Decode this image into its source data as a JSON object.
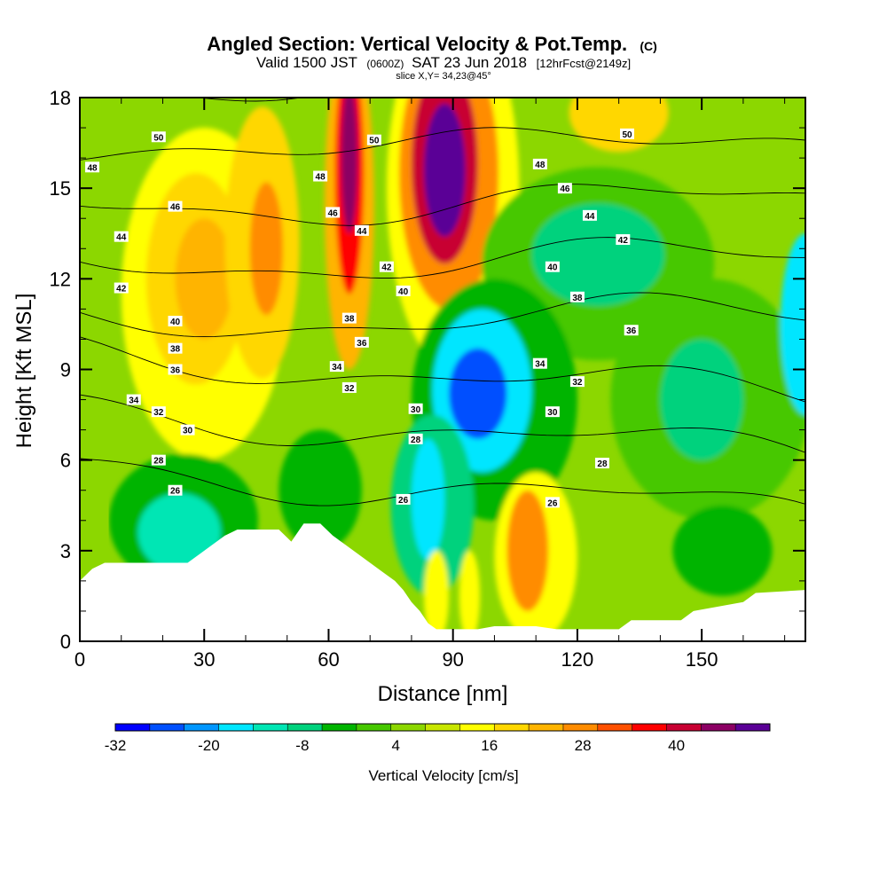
{
  "chart_data": {
    "type": "heatmap",
    "title": "Angled Section: Vertical Velocity & Pot.Temp.",
    "title_suffix": "(C)",
    "subtitle": {
      "part1": "Valid 1500 JST",
      "part2": "(0600Z)",
      "part3": "SAT 23 Jun 2018",
      "part4": "[12hrFcst@2149z]"
    },
    "slice_text": "slice X,Y= 34,23@45°",
    "xlabel": "Distance [nm]",
    "ylabel": "Height [Kft MSL]",
    "xlim": [
      0,
      175
    ],
    "ylim": [
      0,
      18
    ],
    "xticks": [
      "0",
      "30",
      "60",
      "90",
      "120",
      "150"
    ],
    "xtick_values": [
      0,
      30,
      60,
      90,
      120,
      150
    ],
    "yticks": [
      "0",
      "3",
      "6",
      "9",
      "12",
      "15",
      "18"
    ],
    "ytick_values": [
      0,
      3,
      6,
      9,
      12,
      15,
      18
    ],
    "colorbar": {
      "title": "Vertical Velocity [cm/s]",
      "min": -32,
      "max": 48,
      "step": 4,
      "tick_labels": [
        "-32",
        "-20",
        "-8",
        "4",
        "16",
        "28",
        "40"
      ],
      "tick_values": [
        -32,
        -20,
        -8,
        4,
        16,
        28,
        40
      ],
      "colors": [
        "#0000ff",
        "#0050ff",
        "#0096ff",
        "#00e6ff",
        "#00e6b4",
        "#00d27d",
        "#00b400",
        "#46c800",
        "#8cd700",
        "#c8e600",
        "#ffff00",
        "#ffd700",
        "#ffb400",
        "#ff8c00",
        "#ff5000",
        "#ff0000",
        "#c80032",
        "#8c0064",
        "#5a0096"
      ]
    },
    "series": [
      {
        "name": "Vertical Velocity",
        "units": "cm/s",
        "features": [
          {
            "x": 88,
            "y": 15.5,
            "value": 48
          },
          {
            "x": 65,
            "y": 16,
            "value": 36
          },
          {
            "x": 30,
            "y": 12,
            "value": 16
          },
          {
            "x": 45,
            "y": 13,
            "value": 24
          },
          {
            "x": 96,
            "y": 8.3,
            "value": -32
          },
          {
            "x": 107,
            "y": 3,
            "value": 24
          },
          {
            "x": 85,
            "y": 4.5,
            "value": -20
          },
          {
            "x": 25,
            "y": 4,
            "value": -16
          },
          {
            "x": 175,
            "y": 10,
            "value": -24
          },
          {
            "x": 120,
            "y": 12.5,
            "value": -12
          },
          {
            "x": 130,
            "y": 17.5,
            "value": 12
          }
        ]
      },
      {
        "name": "Pot.Temp.",
        "units": "C",
        "contour_labels": [
          {
            "text": "50",
            "x": 19,
            "y": 16.7
          },
          {
            "text": "50",
            "x": 71,
            "y": 16.6
          },
          {
            "text": "50",
            "x": 132,
            "y": 16.8
          },
          {
            "text": "48",
            "x": 3,
            "y": 15.7
          },
          {
            "text": "48",
            "x": 58,
            "y": 15.4
          },
          {
            "text": "48",
            "x": 111,
            "y": 15.8
          },
          {
            "text": "46",
            "x": 23,
            "y": 14.4
          },
          {
            "text": "46",
            "x": 61,
            "y": 14.2
          },
          {
            "text": "46",
            "x": 117,
            "y": 15
          },
          {
            "text": "44",
            "x": 10,
            "y": 13.4
          },
          {
            "text": "44",
            "x": 68,
            "y": 13.6
          },
          {
            "text": "44",
            "x": 123,
            "y": 14.1
          },
          {
            "text": "42",
            "x": 10,
            "y": 11.7
          },
          {
            "text": "42",
            "x": 74,
            "y": 12.4
          },
          {
            "text": "42",
            "x": 131,
            "y": 13.3
          },
          {
            "text": "40",
            "x": 23,
            "y": 10.6
          },
          {
            "text": "40",
            "x": 78,
            "y": 11.6
          },
          {
            "text": "40",
            "x": 114,
            "y": 12.4
          },
          {
            "text": "38",
            "x": 23,
            "y": 9.7
          },
          {
            "text": "38",
            "x": 65,
            "y": 10.7
          },
          {
            "text": "38",
            "x": 120,
            "y": 11.4
          },
          {
            "text": "36",
            "x": 23,
            "y": 9
          },
          {
            "text": "36",
            "x": 68,
            "y": 9.9
          },
          {
            "text": "36",
            "x": 133,
            "y": 10.3
          },
          {
            "text": "34",
            "x": 13,
            "y": 8
          },
          {
            "text": "34",
            "x": 62,
            "y": 9.1
          },
          {
            "text": "34",
            "x": 111,
            "y": 9.2
          },
          {
            "text": "32",
            "x": 19,
            "y": 7.6
          },
          {
            "text": "32",
            "x": 65,
            "y": 8.4
          },
          {
            "text": "32",
            "x": 120,
            "y": 8.6
          },
          {
            "text": "30",
            "x": 26,
            "y": 7
          },
          {
            "text": "30",
            "x": 81,
            "y": 7.7
          },
          {
            "text": "30",
            "x": 114,
            "y": 7.6
          },
          {
            "text": "28",
            "x": 19,
            "y": 6
          },
          {
            "text": "28",
            "x": 81,
            "y": 6.7
          },
          {
            "text": "28",
            "x": 126,
            "y": 5.9
          },
          {
            "text": "26",
            "x": 23,
            "y": 5
          },
          {
            "text": "26",
            "x": 78,
            "y": 4.7
          },
          {
            "text": "26",
            "x": 114,
            "y": 4.6
          }
        ]
      }
    ],
    "terrain": [
      [
        0,
        2
      ],
      [
        3,
        2.4
      ],
      [
        6,
        2.6
      ],
      [
        26,
        2.6
      ],
      [
        29,
        2.9
      ],
      [
        32,
        3.2
      ],
      [
        35,
        3.5
      ],
      [
        38,
        3.7
      ],
      [
        48,
        3.7
      ],
      [
        51,
        3.3
      ],
      [
        54,
        3.9
      ],
      [
        58,
        3.9
      ],
      [
        61,
        3.5
      ],
      [
        64,
        3.2
      ],
      [
        67,
        2.9
      ],
      [
        70,
        2.6
      ],
      [
        73,
        2.3
      ],
      [
        76,
        2
      ],
      [
        78,
        1.7
      ],
      [
        80,
        1.3
      ],
      [
        82,
        1
      ],
      [
        84,
        0.6
      ],
      [
        86,
        0.4
      ],
      [
        96,
        0.4
      ],
      [
        100,
        0.5
      ],
      [
        110,
        0.5
      ],
      [
        115,
        0.4
      ],
      [
        130,
        0.4
      ],
      [
        133,
        0.7
      ],
      [
        145,
        0.7
      ],
      [
        148,
        1
      ],
      [
        160,
        1.3
      ],
      [
        163,
        1.6
      ],
      [
        175,
        1.7
      ]
    ],
    "legend": "colorbar-bottom",
    "grid": false
  }
}
